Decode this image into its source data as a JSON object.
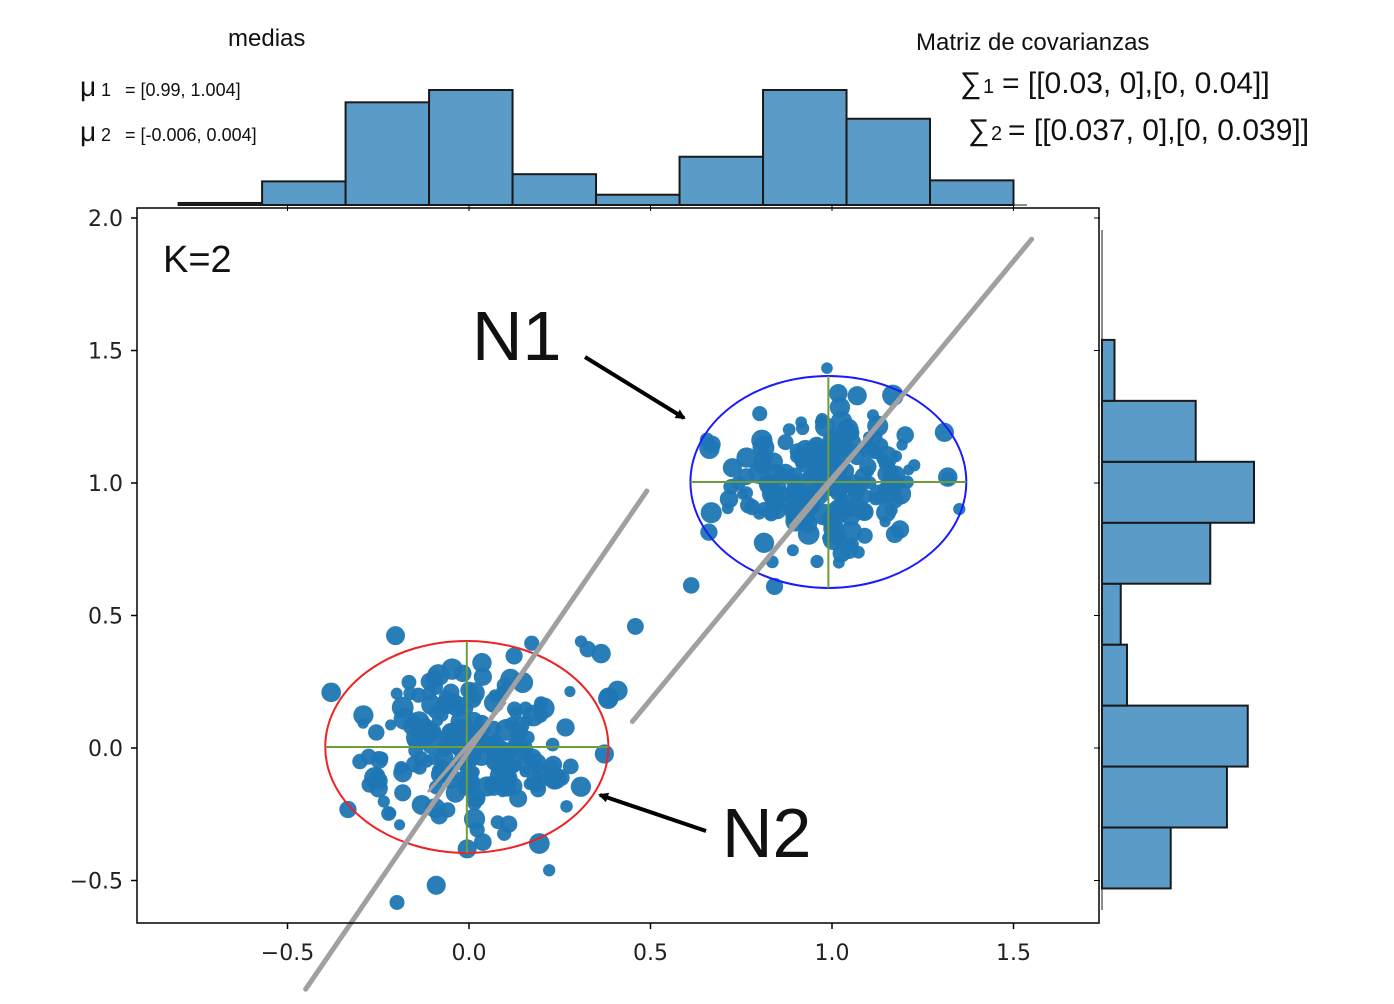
{
  "chart_data": {
    "type": "scatter",
    "title": "",
    "xlabel": "",
    "ylabel": "",
    "xlim": [
      -0.9,
      1.75
    ],
    "ylim": [
      -0.66,
      2.0
    ],
    "x_ticks": [
      -0.5,
      0.0,
      0.5,
      1.0,
      1.5
    ],
    "x_tick_labels": [
      "−0.5",
      "0.0",
      "0.5",
      "1.0",
      "1.5"
    ],
    "y_ticks": [
      -0.5,
      0.0,
      0.5,
      1.0,
      1.5,
      2.0
    ],
    "y_tick_labels": [
      "−0.5",
      "0.0",
      "0.5",
      "1.0",
      "1.5",
      "2.0"
    ],
    "point_color": "#1f77b4",
    "histogram_color": "#5b9bc8",
    "top_histogram": {
      "bin_edges": [
        -0.8,
        -0.57,
        -0.34,
        -0.11,
        0.12,
        0.35,
        0.58,
        0.81,
        1.04,
        1.27,
        1.5
      ],
      "counts": [
        2,
        23,
        100,
        112,
        30,
        10,
        47,
        112,
        84,
        24
      ]
    },
    "right_histogram": {
      "bin_edges": [
        -0.53,
        -0.3,
        -0.07,
        0.16,
        0.39,
        0.62,
        0.85,
        1.08,
        1.31,
        1.54
      ],
      "counts": [
        33,
        60,
        70,
        12,
        9,
        52,
        73,
        45,
        6
      ]
    },
    "clusters": [
      {
        "name": "N1",
        "center": [
          0.99,
          1.004
        ],
        "ellipse_radii": [
          0.38,
          0.4
        ],
        "ellipse_color": "#1a1aff",
        "n_points": 230,
        "sigma": [
          0.13,
          0.14
        ]
      },
      {
        "name": "N2",
        "center": [
          -0.006,
          0.004
        ],
        "ellipse_radii": [
          0.39,
          0.4
        ],
        "ellipse_color": "#ee2222",
        "n_points": 230,
        "sigma": [
          0.13,
          0.14
        ]
      }
    ],
    "axis_lines_color": "#6e9e3c",
    "diagonal_color": "#a0a0a0",
    "diagonal_segments": [
      {
        "from": [
          0.45,
          0.1
        ],
        "to": [
          1.55,
          1.92
        ]
      },
      {
        "from": [
          -0.45,
          -0.91
        ],
        "to": [
          0.49,
          0.97
        ]
      }
    ],
    "annotations": {
      "k_label": "K=2",
      "n1_label": "N1",
      "n2_label": "N2",
      "means_title": "medias",
      "mu1_symbol": "μ",
      "mu1_sub": "1",
      "mu1_value": "= [0.99, 1.004]",
      "mu2_symbol": "μ",
      "mu2_sub": "2",
      "mu2_value": "= [-0.006, 0.004]",
      "cov_title": "Matriz de covarianzas",
      "sigma1_symbol": "∑",
      "sigma1_sub": "1",
      "sigma1_value": "= [[0.03,  0],[0, 0.04]]",
      "sigma2_symbol": "∑",
      "sigma2_sub": "2",
      "sigma2_value": "= [[0.037, 0],[0, 0.039]]"
    }
  }
}
